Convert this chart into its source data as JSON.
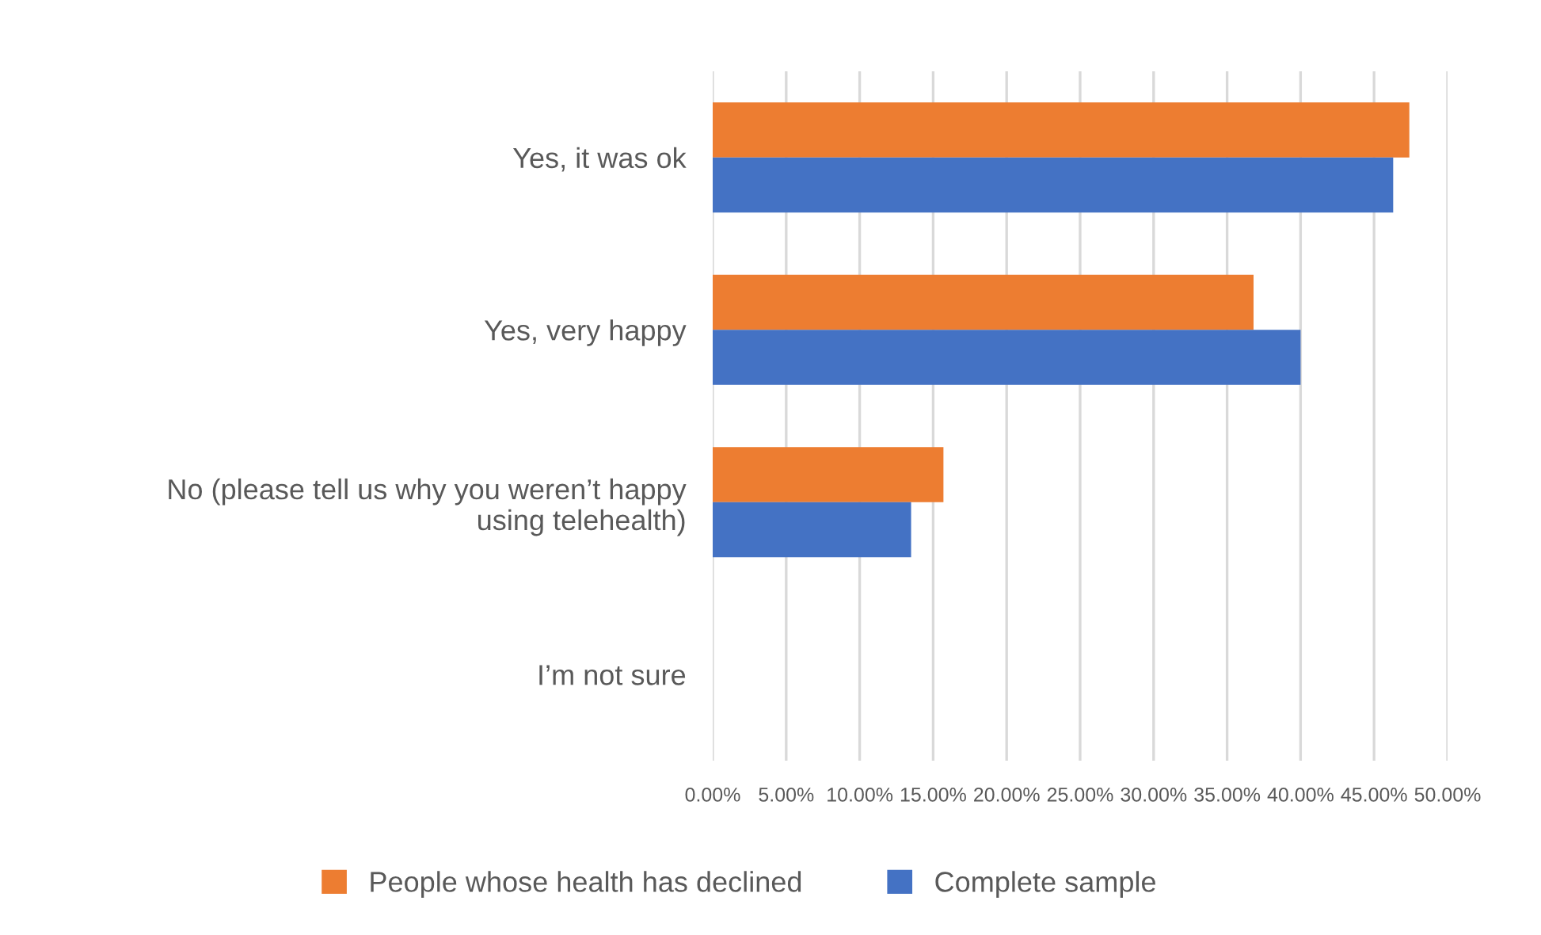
{
  "chart_data": {
    "type": "bar",
    "orientation": "horizontal",
    "categories": [
      "Yes, it was ok",
      "Yes, very happy",
      "No (please tell us why you weren’t happy\nusing telehealth)",
      "I’m not sure"
    ],
    "series": [
      {
        "name": "People whose health has declined",
        "color": "#ed7d31",
        "values": [
          47.4,
          36.8,
          15.7,
          0
        ]
      },
      {
        "name": "Complete sample",
        "color": "#4472c4",
        "values": [
          46.3,
          40.0,
          13.5,
          0
        ]
      }
    ],
    "xlim": [
      0,
      50
    ],
    "xticks": [
      {
        "value": 0,
        "label": "0.00%"
      },
      {
        "value": 5,
        "label": "5.00%"
      },
      {
        "value": 10,
        "label": "10.00%"
      },
      {
        "value": 15,
        "label": "15.00%"
      },
      {
        "value": 20,
        "label": "20.00%"
      },
      {
        "value": 25,
        "label": "25.00%"
      },
      {
        "value": 30,
        "label": "30.00%"
      },
      {
        "value": 35,
        "label": "35.00%"
      },
      {
        "value": 40,
        "label": "40.00%"
      },
      {
        "value": 45,
        "label": "45.00%"
      },
      {
        "value": 50,
        "label": "50.00%"
      }
    ],
    "grid": "x",
    "legend": "bottom"
  }
}
